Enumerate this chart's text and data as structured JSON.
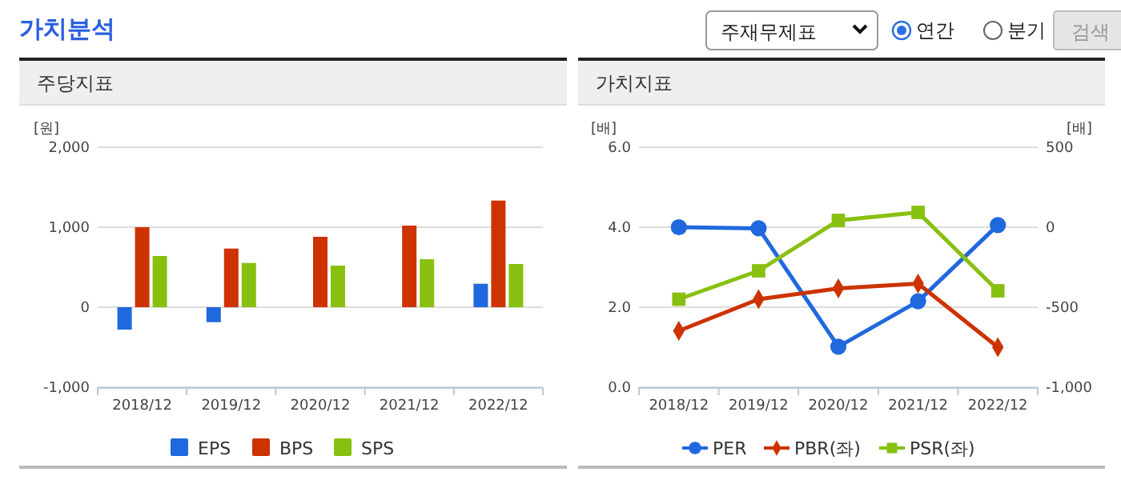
{
  "chart_data": [
    {
      "type": "other",
      "title": "가치분석",
      "annotations": [
        "주재무제표",
        "연간",
        "분기",
        "검색"
      ]
    },
    {
      "type": "bar",
      "title": "주당지표",
      "ylabel": "[원]",
      "categories": [
        "2018/12",
        "2019/12",
        "2020/12",
        "2021/12",
        "2022/12"
      ],
      "series": [
        {
          "name": "EPS",
          "color": "#2068dd",
          "values": [
            -280,
            -187,
            null,
            null,
            293
          ]
        },
        {
          "name": "BPS",
          "color": "#cc3300",
          "values": [
            1000,
            733,
            880,
            1020,
            1333
          ]
        },
        {
          "name": "SPS",
          "color": "#88c010",
          "values": [
            640,
            553,
            520,
            600,
            540
          ]
        }
      ],
      "ylim": [
        -1000,
        2000
      ],
      "yticks": [
        {
          "value": -1000,
          "label": "-1,000"
        },
        0,
        {
          "value": 1000,
          "label": "1,000"
        },
        {
          "value": 2000,
          "label": "2,000"
        }
      ],
      "grid": "y",
      "legend": "bottom"
    },
    {
      "type": "line",
      "title": "가치지표",
      "ylabel": "[배]",
      "y2label": "[배]",
      "categories": [
        "2018/12",
        "2019/12",
        "2020/12",
        "2021/12",
        "2022/12"
      ],
      "series": [
        {
          "name": "PER",
          "color": "#2068dd",
          "axis": "y2",
          "marker": "circle",
          "values": [
            0,
            -7,
            -747,
            -463,
            13
          ]
        },
        {
          "name": "PBR(좌)",
          "color": "#cc3300",
          "marker": "diamond",
          "values": [
            1.41,
            2.2,
            2.47,
            2.59,
            1.0
          ]
        },
        {
          "name": "PSR(좌)",
          "color": "#88c010",
          "marker": "square",
          "values": [
            2.2,
            2.91,
            4.17,
            4.37,
            2.41
          ]
        }
      ],
      "ylim": [
        0,
        6
      ],
      "yticks": [
        {
          "value": 0,
          "label": "0.0"
        },
        {
          "value": 2,
          "label": "2.0"
        },
        {
          "value": 4,
          "label": "4.0"
        },
        {
          "value": 6,
          "label": "6.0"
        }
      ],
      "y2lim": [
        -1000,
        500
      ],
      "y2ticks": [
        {
          "value": -1000,
          "label": "-1,000"
        },
        -500,
        0,
        500
      ],
      "grid": "y",
      "legend": "bottom"
    }
  ]
}
